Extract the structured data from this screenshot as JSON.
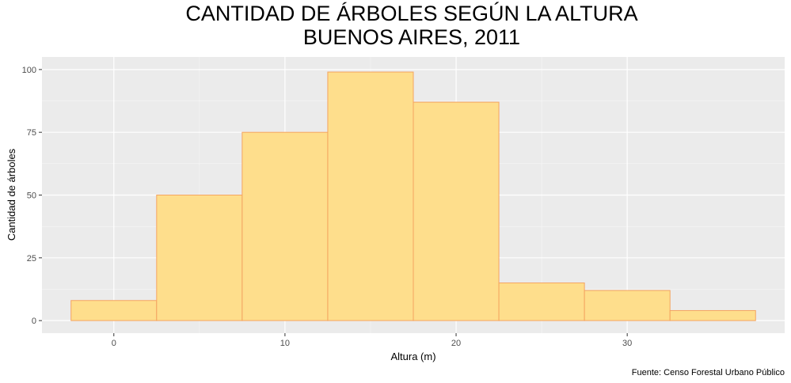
{
  "chart_data": {
    "type": "bar",
    "title_lines": [
      "CANTIDAD DE ÁRBOLES SEGÚN LA ALTURA",
      "BUENOS AIRES, 2011"
    ],
    "xlabel": "Altura (m)",
    "ylabel": "Cantidad de árboles",
    "caption": "Fuente: Censo Forestal Urbano Público",
    "bin_width": 5,
    "bins": [
      {
        "start": -2.5,
        "end": 2.5,
        "value": 8
      },
      {
        "start": 2.5,
        "end": 7.5,
        "value": 50
      },
      {
        "start": 7.5,
        "end": 12.5,
        "value": 75
      },
      {
        "start": 12.5,
        "end": 17.5,
        "value": 99
      },
      {
        "start": 17.5,
        "end": 22.5,
        "value": 87
      },
      {
        "start": 22.5,
        "end": 27.5,
        "value": 15
      },
      {
        "start": 27.5,
        "end": 32.5,
        "value": 12
      },
      {
        "start": 32.5,
        "end": 37.5,
        "value": 4
      }
    ],
    "xlim": [
      -4.2,
      39.2
    ],
    "ylim": [
      -5,
      105
    ],
    "x_ticks": [
      0,
      10,
      20,
      30
    ],
    "y_ticks": [
      0,
      25,
      50,
      75,
      100
    ],
    "grid": true,
    "bar_fill": "#fede8c",
    "bar_stroke": "#f4a460",
    "panel_background": "#ebebeb"
  }
}
